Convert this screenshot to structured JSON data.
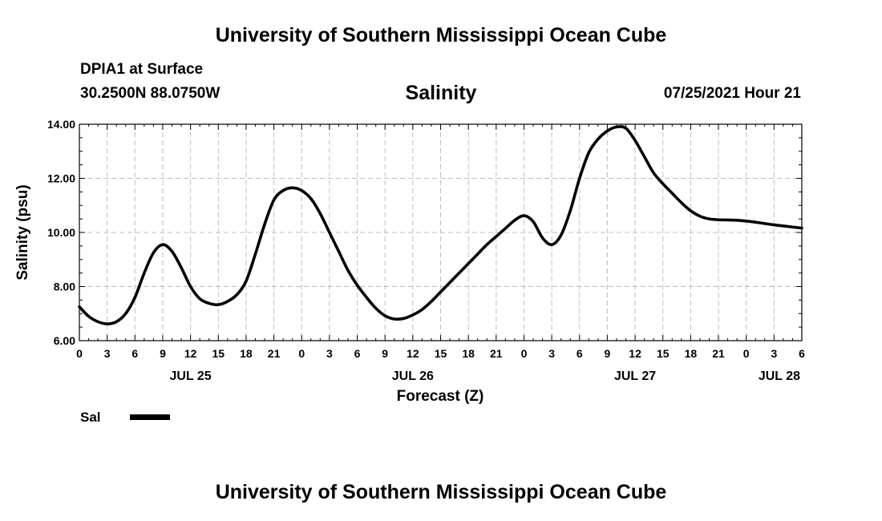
{
  "header": {
    "title_top": "University of Southern Mississippi Ocean Cube",
    "station": "DPIA1 at Surface",
    "coords": "30.2500N  88.0750W",
    "datetime": "07/25/2021 Hour 21"
  },
  "footer": {
    "title_bottom": "University of Southern Mississippi Ocean Cube"
  },
  "chart_data": {
    "type": "line",
    "title": "Salinity",
    "xlabel": "Forecast (Z)",
    "ylabel": "Salinity (psu)",
    "ylim": [
      6,
      14
    ],
    "xlim": [
      0,
      78
    ],
    "grid": true,
    "y_ticks": [
      "6.00",
      "8.00",
      "10.00",
      "12.00",
      "14.00"
    ],
    "x_tick_hours": [
      0,
      3,
      6,
      9,
      12,
      15,
      18,
      21,
      24,
      27,
      30,
      33,
      36,
      39,
      42,
      45,
      48,
      51,
      54,
      57,
      60,
      63,
      66,
      69,
      72,
      75,
      78
    ],
    "x_tick_labels": [
      "0",
      "3",
      "6",
      "9",
      "12",
      "15",
      "18",
      "21",
      "0",
      "3",
      "6",
      "9",
      "12",
      "15",
      "18",
      "21",
      "0",
      "3",
      "6",
      "9",
      "12",
      "15",
      "18",
      "21",
      "0",
      "3",
      "6"
    ],
    "date_labels": [
      {
        "label": "JUL 25",
        "hour": 12
      },
      {
        "label": "JUL 26",
        "hour": 36
      },
      {
        "label": "JUL 27",
        "hour": 60
      },
      {
        "label": "JUL 28",
        "hour": 78
      }
    ],
    "legend": [
      {
        "name": "Sal",
        "color": "#000000"
      }
    ],
    "series": [
      {
        "name": "Sal",
        "color": "#000000",
        "x": [
          0,
          1,
          2,
          3,
          4,
          5,
          6,
          7,
          8,
          9,
          10,
          11,
          12,
          13,
          14,
          15,
          16,
          17,
          18,
          19,
          20,
          21,
          22,
          23,
          24,
          25,
          26,
          27,
          28,
          29,
          30,
          31,
          32,
          33,
          34,
          35,
          36,
          37,
          38,
          39,
          40,
          41,
          42,
          43,
          44,
          45,
          46,
          47,
          48,
          49,
          50,
          51,
          52,
          53,
          54,
          55,
          56,
          57,
          58,
          59,
          60,
          61,
          62,
          63,
          64,
          65,
          66,
          67,
          68,
          69,
          70,
          71,
          72,
          73,
          74,
          75,
          76,
          77,
          78
        ],
        "values": [
          7.25,
          6.9,
          6.7,
          6.62,
          6.7,
          7.0,
          7.6,
          8.5,
          9.25,
          9.55,
          9.3,
          8.7,
          8.0,
          7.55,
          7.38,
          7.33,
          7.45,
          7.7,
          8.2,
          9.2,
          10.3,
          11.2,
          11.55,
          11.65,
          11.55,
          11.25,
          10.7,
          10.0,
          9.3,
          8.6,
          8.05,
          7.6,
          7.2,
          6.92,
          6.8,
          6.82,
          6.95,
          7.15,
          7.45,
          7.8,
          8.15,
          8.5,
          8.85,
          9.2,
          9.55,
          9.85,
          10.15,
          10.45,
          10.62,
          10.4,
          9.8,
          9.55,
          9.9,
          10.8,
          12.0,
          12.95,
          13.45,
          13.75,
          13.9,
          13.85,
          13.4,
          12.8,
          12.2,
          11.8,
          11.45,
          11.1,
          10.8,
          10.6,
          10.5,
          10.47,
          10.46,
          10.45,
          10.42,
          10.38,
          10.33,
          10.28,
          10.24,
          10.2,
          10.16
        ]
      }
    ]
  }
}
